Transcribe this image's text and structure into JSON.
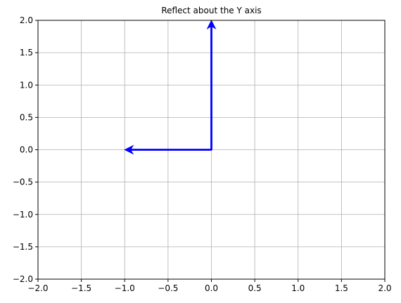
{
  "chart_data": {
    "type": "quiver",
    "title": "Reflect about the Y axis",
    "xlabel": "",
    "ylabel": "",
    "xlim": [
      -2,
      2
    ],
    "ylim": [
      -2,
      2
    ],
    "grid": true,
    "xticks": [
      -2.0,
      -1.5,
      -1.0,
      -0.5,
      0.0,
      0.5,
      1.0,
      1.5,
      2.0
    ],
    "yticks": [
      -2.0,
      -1.5,
      -1.0,
      -0.5,
      0.0,
      0.5,
      1.0,
      1.5,
      2.0
    ],
    "xtick_labels": [
      "−2.0",
      "−1.5",
      "−1.0",
      "−0.5",
      "0.0",
      "0.5",
      "1.0",
      "1.5",
      "2.0"
    ],
    "ytick_labels": [
      "−2.0",
      "−1.5",
      "−1.0",
      "−0.5",
      "0.0",
      "0.5",
      "1.0",
      "1.5",
      "2.0"
    ],
    "vectors": [
      {
        "origin": [
          0,
          0
        ],
        "components": [
          -1,
          0
        ],
        "color": "#0000ff"
      },
      {
        "origin": [
          0,
          0
        ],
        "components": [
          0,
          2
        ],
        "color": "#0000ff"
      }
    ],
    "colors": {
      "grid": "#b0b0b0",
      "axes": "#000000",
      "vector": "#0000ff"
    }
  }
}
